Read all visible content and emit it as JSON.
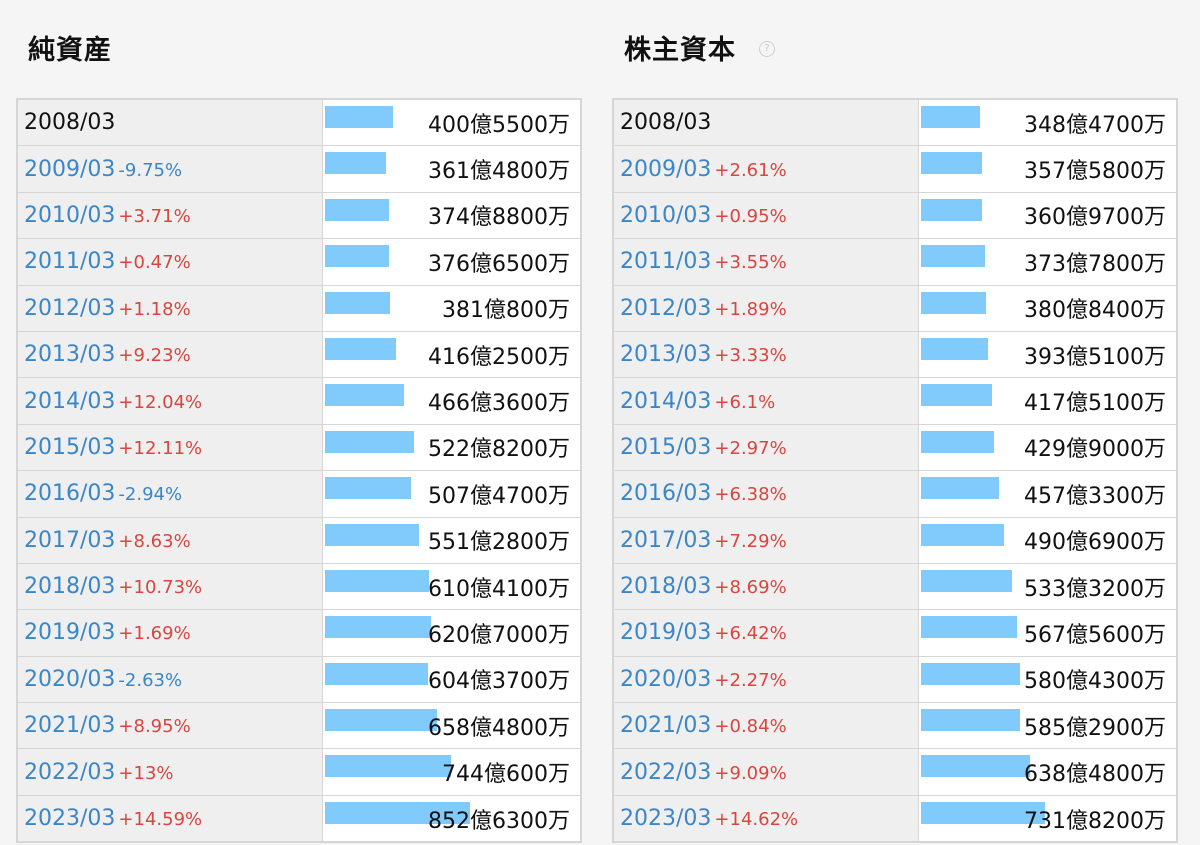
{
  "chart_data": [
    {
      "type": "table",
      "title": "純資産",
      "base_period": "2008/03",
      "rows": [
        {
          "period": "2008/03",
          "change": "",
          "value": 400.55,
          "label": "400億5500万"
        },
        {
          "period": "2009/03",
          "change": "-9.75%",
          "value": 361.48,
          "label": "361億4800万"
        },
        {
          "period": "2010/03",
          "change": "+3.71%",
          "value": 374.88,
          "label": "374億8800万"
        },
        {
          "period": "2011/03",
          "change": "+0.47%",
          "value": 376.65,
          "label": "376億6500万"
        },
        {
          "period": "2012/03",
          "change": "+1.18%",
          "value": 381.08,
          "label": "381億800万"
        },
        {
          "period": "2013/03",
          "change": "+9.23%",
          "value": 416.25,
          "label": "416億2500万"
        },
        {
          "period": "2014/03",
          "change": "+12.04%",
          "value": 466.36,
          "label": "466億3600万"
        },
        {
          "period": "2015/03",
          "change": "+12.11%",
          "value": 522.82,
          "label": "522億8200万"
        },
        {
          "period": "2016/03",
          "change": "-2.94%",
          "value": 507.47,
          "label": "507億4700万"
        },
        {
          "period": "2017/03",
          "change": "+8.63%",
          "value": 551.28,
          "label": "551億2800万"
        },
        {
          "period": "2018/03",
          "change": "+10.73%",
          "value": 610.41,
          "label": "610億4100万"
        },
        {
          "period": "2019/03",
          "change": "+1.69%",
          "value": 620.7,
          "label": "620億7000万"
        },
        {
          "period": "2020/03",
          "change": "-2.63%",
          "value": 604.37,
          "label": "604億3700万"
        },
        {
          "period": "2021/03",
          "change": "+8.95%",
          "value": 658.48,
          "label": "658億4800万"
        },
        {
          "period": "2022/03",
          "change": "+13%",
          "value": 744.06,
          "label": "744億600万"
        },
        {
          "period": "2023/03",
          "change": "+14.59%",
          "value": 852.63,
          "label": "852億6300万"
        }
      ]
    },
    {
      "type": "table",
      "title": "株主資本",
      "base_period": "2008/03",
      "help_icon": "?",
      "rows": [
        {
          "period": "2008/03",
          "change": "",
          "value": 348.47,
          "label": "348億4700万"
        },
        {
          "period": "2009/03",
          "change": "+2.61%",
          "value": 357.58,
          "label": "357億5800万"
        },
        {
          "period": "2010/03",
          "change": "+0.95%",
          "value": 360.97,
          "label": "360億9700万"
        },
        {
          "period": "2011/03",
          "change": "+3.55%",
          "value": 373.78,
          "label": "373億7800万"
        },
        {
          "period": "2012/03",
          "change": "+1.89%",
          "value": 380.84,
          "label": "380億8400万"
        },
        {
          "period": "2013/03",
          "change": "+3.33%",
          "value": 393.51,
          "label": "393億5100万"
        },
        {
          "period": "2014/03",
          "change": "+6.1%",
          "value": 417.51,
          "label": "417億5100万"
        },
        {
          "period": "2015/03",
          "change": "+2.97%",
          "value": 429.9,
          "label": "429億9000万"
        },
        {
          "period": "2016/03",
          "change": "+6.38%",
          "value": 457.33,
          "label": "457億3300万"
        },
        {
          "period": "2017/03",
          "change": "+7.29%",
          "value": 490.69,
          "label": "490億6900万"
        },
        {
          "period": "2018/03",
          "change": "+8.69%",
          "value": 533.32,
          "label": "533億3200万"
        },
        {
          "period": "2019/03",
          "change": "+6.42%",
          "value": 567.56,
          "label": "567億5600万"
        },
        {
          "period": "2020/03",
          "change": "+2.27%",
          "value": 580.43,
          "label": "580億4300万"
        },
        {
          "period": "2021/03",
          "change": "+0.84%",
          "value": 585.29,
          "label": "585億2900万"
        },
        {
          "period": "2022/03",
          "change": "+9.09%",
          "value": 638.48,
          "label": "638億4800万"
        },
        {
          "period": "2023/03",
          "change": "+14.62%",
          "value": 731.82,
          "label": "731億8200万"
        }
      ]
    }
  ],
  "colors": {
    "bar": "#80cbfb",
    "positive_change": "#d9453f",
    "negative_change": "#3a86c8",
    "period_link": "#3a86c8"
  }
}
